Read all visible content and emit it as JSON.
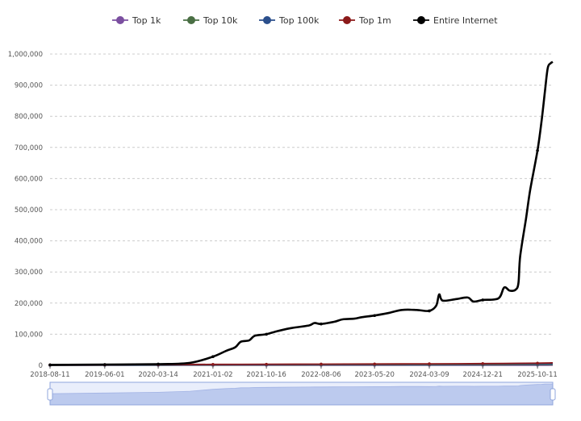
{
  "chart_data": {
    "type": "line",
    "title": "",
    "xlabel": "",
    "ylabel": "",
    "ylim": [
      0,
      1000000
    ],
    "y_ticks": [
      "0",
      "100,000",
      "200,000",
      "300,000",
      "400,000",
      "500,000",
      "600,000",
      "700,000",
      "800,000",
      "900,000",
      "1,000,000"
    ],
    "x_ticks": [
      "2018-08-11",
      "2019-06-01",
      "2020-03-14",
      "2021-01-02",
      "2021-10-16",
      "2022-08-06",
      "2023-05-20",
      "2024-03-09",
      "2024-12-21",
      "2025-10-11"
    ],
    "x_range": [
      "2018-08-11",
      "2026-01-01"
    ],
    "grid": "horizontal dashed",
    "legend_position": "top-center",
    "series": [
      {
        "name": "Top 1k",
        "color": "#7b4fa0",
        "points": [
          [
            "2018-08-11",
            100
          ],
          [
            "2019-06-01",
            150
          ],
          [
            "2020-03-14",
            200
          ],
          [
            "2021-01-02",
            250
          ],
          [
            "2021-10-16",
            300
          ],
          [
            "2022-08-06",
            350
          ],
          [
            "2023-05-20",
            400
          ],
          [
            "2024-03-09",
            450
          ],
          [
            "2024-12-21",
            500
          ],
          [
            "2025-10-11",
            600
          ],
          [
            "2026-01-01",
            650
          ]
        ]
      },
      {
        "name": "Top 10k",
        "color": "#4a6f44",
        "points": [
          [
            "2018-08-11",
            500
          ],
          [
            "2019-06-01",
            700
          ],
          [
            "2020-03-14",
            900
          ],
          [
            "2021-01-02",
            1100
          ],
          [
            "2021-10-16",
            1300
          ],
          [
            "2022-08-06",
            1500
          ],
          [
            "2023-05-20",
            1700
          ],
          [
            "2024-03-09",
            1900
          ],
          [
            "2024-12-21",
            2100
          ],
          [
            "2025-10-11",
            2400
          ],
          [
            "2026-01-01",
            2600
          ]
        ]
      },
      {
        "name": "Top 100k",
        "color": "#2b4f8c",
        "points": [
          [
            "2018-08-11",
            1000
          ],
          [
            "2019-06-01",
            1300
          ],
          [
            "2020-03-14",
            1600
          ],
          [
            "2021-01-02",
            2000
          ],
          [
            "2021-10-16",
            2400
          ],
          [
            "2022-08-06",
            2800
          ],
          [
            "2023-05-20",
            3200
          ],
          [
            "2024-03-09",
            3600
          ],
          [
            "2024-12-21",
            4000
          ],
          [
            "2025-10-11",
            4500
          ],
          [
            "2026-01-01",
            5000
          ]
        ]
      },
      {
        "name": "Top 1m",
        "color": "#8b1a1a",
        "points": [
          [
            "2018-08-11",
            1500
          ],
          [
            "2019-06-01",
            2000
          ],
          [
            "2020-03-14",
            2500
          ],
          [
            "2021-01-02",
            3000
          ],
          [
            "2021-10-16",
            3500
          ],
          [
            "2022-08-06",
            4000
          ],
          [
            "2023-05-20",
            4500
          ],
          [
            "2024-03-09",
            5000
          ],
          [
            "2024-12-21",
            5600
          ],
          [
            "2025-10-11",
            7000
          ],
          [
            "2026-01-01",
            8000
          ]
        ]
      },
      {
        "name": "Entire Internet",
        "color": "#000000",
        "points": [
          [
            "2018-08-11",
            1500
          ],
          [
            "2019-06-01",
            2500
          ],
          [
            "2020-03-14",
            4000
          ],
          [
            "2020-09-01",
            8000
          ],
          [
            "2021-01-02",
            28000
          ],
          [
            "2021-03-15",
            47000
          ],
          [
            "2021-05-01",
            58000
          ],
          [
            "2021-06-01",
            76000
          ],
          [
            "2021-07-15",
            80000
          ],
          [
            "2021-08-15",
            95000
          ],
          [
            "2021-10-16",
            100000
          ],
          [
            "2021-12-15",
            110000
          ],
          [
            "2022-03-01",
            120000
          ],
          [
            "2022-06-01",
            128000
          ],
          [
            "2022-07-01",
            136000
          ],
          [
            "2022-08-06",
            133000
          ],
          [
            "2022-10-15",
            140000
          ],
          [
            "2022-12-01",
            148000
          ],
          [
            "2023-02-01",
            150000
          ],
          [
            "2023-03-15",
            155000
          ],
          [
            "2023-05-20",
            160000
          ],
          [
            "2023-08-01",
            168000
          ],
          [
            "2023-10-15",
            178000
          ],
          [
            "2024-01-01",
            178000
          ],
          [
            "2024-03-09",
            175000
          ],
          [
            "2024-04-15",
            192000
          ],
          [
            "2024-05-01",
            228000
          ],
          [
            "2024-05-20",
            208000
          ],
          [
            "2024-08-01",
            213000
          ],
          [
            "2024-10-01",
            218000
          ],
          [
            "2024-11-01",
            205000
          ],
          [
            "2024-12-21",
            210000
          ],
          [
            "2025-03-15",
            215000
          ],
          [
            "2025-04-15",
            250000
          ],
          [
            "2025-05-15",
            240000
          ],
          [
            "2025-06-15",
            243000
          ],
          [
            "2025-07-01",
            265000
          ],
          [
            "2025-07-10",
            350000
          ],
          [
            "2025-08-10",
            470000
          ],
          [
            "2025-09-01",
            560000
          ],
          [
            "2025-10-11",
            690000
          ],
          [
            "2025-11-01",
            780000
          ],
          [
            "2025-11-20",
            880000
          ],
          [
            "2025-12-05",
            955000
          ],
          [
            "2025-12-20",
            970000
          ],
          [
            "2026-01-01",
            975000
          ]
        ]
      }
    ]
  },
  "zoom_slider": {
    "window_start": "2018-08-11",
    "window_end": "2026-01-01",
    "preview_series": "Entire Internet"
  }
}
